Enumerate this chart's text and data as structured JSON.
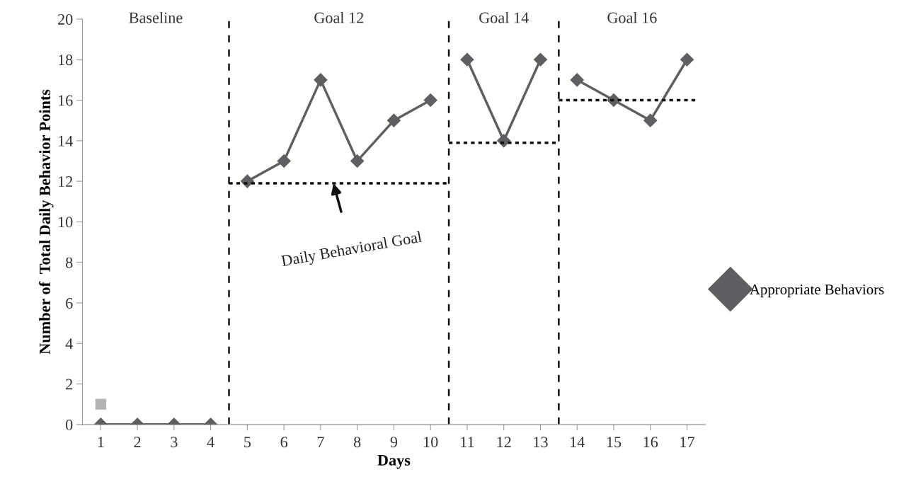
{
  "chart_data": {
    "type": "line",
    "xlabel": "Days",
    "ylabel": "Number of  Total Daily Behavior Points",
    "xlim": [
      0.5,
      17.5
    ],
    "ylim": [
      0,
      20
    ],
    "yticks": [
      0,
      2,
      4,
      6,
      8,
      10,
      12,
      14,
      16,
      18,
      20
    ],
    "xticks": [
      1,
      2,
      3,
      4,
      5,
      6,
      7,
      8,
      9,
      10,
      11,
      12,
      13,
      14,
      15,
      16,
      17
    ],
    "grid": false,
    "legend": "right",
    "marker": "diamond",
    "series": [
      {
        "name": "Appropriate Behaviors",
        "color": "#5f5f63",
        "x": [
          1,
          2,
          3,
          4
        ],
        "values": [
          0,
          0,
          0,
          0
        ]
      },
      {
        "color": "#5f5f63",
        "x": [
          5,
          6,
          7,
          8,
          9,
          10
        ],
        "values": [
          12,
          13,
          17,
          13,
          15,
          16
        ]
      },
      {
        "color": "#5f5f63",
        "x": [
          11,
          12,
          13
        ],
        "values": [
          18,
          14,
          18
        ]
      },
      {
        "color": "#5f5f63",
        "x": [
          14,
          15,
          16,
          17
        ],
        "values": [
          17,
          16,
          15,
          18
        ]
      },
      {
        "type": "scatter",
        "marker": "square",
        "color": "#b4b4b4",
        "x": [
          1
        ],
        "values": [
          1
        ]
      },
      {
        "color": "#111111",
        "marker": "none",
        "line_style": "dotted",
        "x": [
          4.5,
          10.5
        ],
        "values": [
          11.9,
          11.9
        ]
      },
      {
        "color": "#111111",
        "marker": "none",
        "line_style": "dotted",
        "x": [
          10.5,
          13.5
        ],
        "values": [
          13.9,
          13.9
        ]
      },
      {
        "color": "#111111",
        "marker": "none",
        "line_style": "dotted",
        "x": [
          13.5,
          17.25
        ],
        "values": [
          16,
          16
        ]
      }
    ],
    "ref_lines": [
      {
        "axis": "x",
        "value": 4.5,
        "color": "#111111",
        "line_style": "dashed"
      },
      {
        "axis": "x",
        "value": 10.5,
        "color": "#111111",
        "line_style": "dashed"
      },
      {
        "axis": "x",
        "value": 13.5,
        "color": "#111111",
        "line_style": "dashed"
      }
    ],
    "annotations": [
      "Baseline",
      "Goal 12",
      "Goal 14",
      "Goal 16",
      {
        "text": "Daily Behavioral Goal",
        "x": 7.35,
        "y": 11.9
      }
    ]
  }
}
